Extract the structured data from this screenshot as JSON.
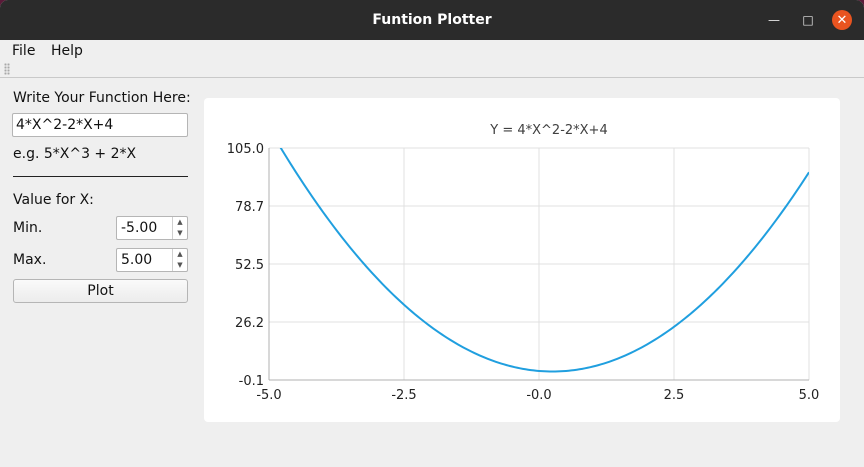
{
  "window": {
    "title": "Funtion Plotter",
    "controls": {
      "minimize_icon": "minimize-icon",
      "maximize_icon": "maximize-icon",
      "close_icon": "close-icon"
    }
  },
  "menu": [
    {
      "label": "File"
    },
    {
      "label": "Help"
    }
  ],
  "sidebar": {
    "function_label": "Write Your Function Here:",
    "function_value": "4*X^2-2*X+4",
    "example_text": "e.g. 5*X^3  + 2*X",
    "range_label": "Value for X:",
    "min_label": "Min.",
    "min_value": "-5.00",
    "max_label": "Max.",
    "max_value": "5.00",
    "plot_button": "Plot"
  },
  "colors": {
    "accent": "#e95420",
    "line": "#209fdf",
    "titlebar": "#2b2b2b"
  },
  "chart_data": {
    "type": "line",
    "title": "Y = 4*X^2-2*X+4",
    "function": "4*X^2-2*X+4",
    "x_ticks": [
      "-5.0",
      "-2.5",
      "-0.0",
      "2.5",
      "5.0"
    ],
    "y_ticks": [
      "105.0",
      "78.7",
      "52.5",
      "26.2",
      "-0.1"
    ],
    "xlim": [
      -5.0,
      5.0
    ],
    "ylim": [
      -0.1,
      105.0
    ],
    "grid": true,
    "series": [
      {
        "x": [
          -5.0,
          -4.5,
          -4.0,
          -3.5,
          -3.0,
          -2.5,
          -2.0,
          -1.5,
          -1.0,
          -0.5,
          0.0,
          0.5,
          1.0,
          1.5,
          2.0,
          2.5,
          3.0,
          3.5,
          4.0,
          4.5,
          5.0
        ],
        "y": [
          114.0,
          94.0,
          76.0,
          60.0,
          46.0,
          34.0,
          24.0,
          16.0,
          10.0,
          6.0,
          4.0,
          4.0,
          6.0,
          10.0,
          16.0,
          24.0,
          34.0,
          46.0,
          60.0,
          76.0,
          94.0
        ]
      }
    ]
  }
}
